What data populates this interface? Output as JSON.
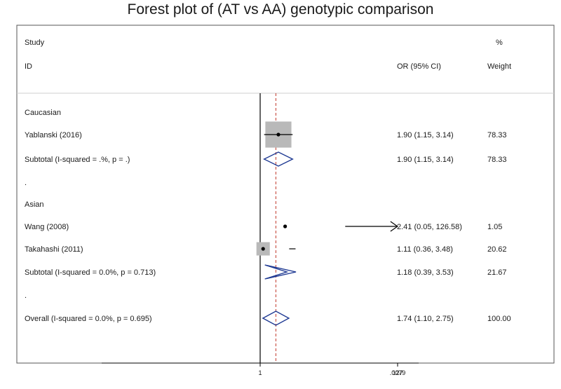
{
  "chart_data": {
    "type": "forest",
    "title": "Forest plot of (AT vs AA) genotypic comparison",
    "headers": {
      "study_top": "Study",
      "study_bottom": "ID",
      "estimate": "OR (95% CI)",
      "weight_top": "%",
      "weight_bottom": "Weight"
    },
    "x_scale": "log",
    "x_ticks": [
      {
        "value": 0.0079,
        "label": ".0079"
      },
      {
        "value": 1,
        "label": "1"
      },
      {
        "value": 127,
        "label": "127"
      }
    ],
    "null_line": 1,
    "overall_line": 1.74,
    "rows": [
      {
        "kind": "group",
        "label": "Caucasian"
      },
      {
        "kind": "study",
        "label": "Yablanski (2016)",
        "or": 1.9,
        "lo": 1.15,
        "hi": 3.14,
        "text": "1.90 (1.15, 3.14)",
        "weight": "78.33"
      },
      {
        "kind": "subtotal",
        "label": "Subtotal  (I-squared = .%, p = .)",
        "or": 1.9,
        "lo": 1.15,
        "hi": 3.14,
        "text": "1.90 (1.15, 3.14)",
        "weight": "78.33"
      },
      {
        "kind": "spacer",
        "label": "."
      },
      {
        "kind": "group",
        "label": "Asian"
      },
      {
        "kind": "study",
        "label": "Wang (2008)",
        "or": 2.41,
        "lo": 0.05,
        "hi": 126.58,
        "text": "2.41 (0.05, 126.58)",
        "weight": "1.05",
        "arrow_right": true
      },
      {
        "kind": "study",
        "label": "Takahashi (2011)",
        "or": 1.11,
        "lo": 0.36,
        "hi": 3.48,
        "text": "1.11 (0.36, 3.48)",
        "weight": "20.62"
      },
      {
        "kind": "subtotal",
        "label": "Subtotal  (I-squared = 0.0%, p = 0.713)",
        "or": 1.18,
        "lo": 0.39,
        "hi": 3.53,
        "text": "1.18 (0.39, 3.53)",
        "weight": "21.67"
      },
      {
        "kind": "spacer",
        "label": "."
      },
      {
        "kind": "overall",
        "label": "Overall  (I-squared = 0.0%, p = 0.695)",
        "or": 1.74,
        "lo": 1.1,
        "hi": 2.75,
        "text": "1.74 (1.10, 2.75)",
        "weight": "100.00"
      }
    ],
    "colors": {
      "diamond": "#1f3a93",
      "box": "#b9b9b9",
      "null_line": "#000000",
      "overall_line": "#c0392b",
      "frame": "#555555"
    }
  }
}
